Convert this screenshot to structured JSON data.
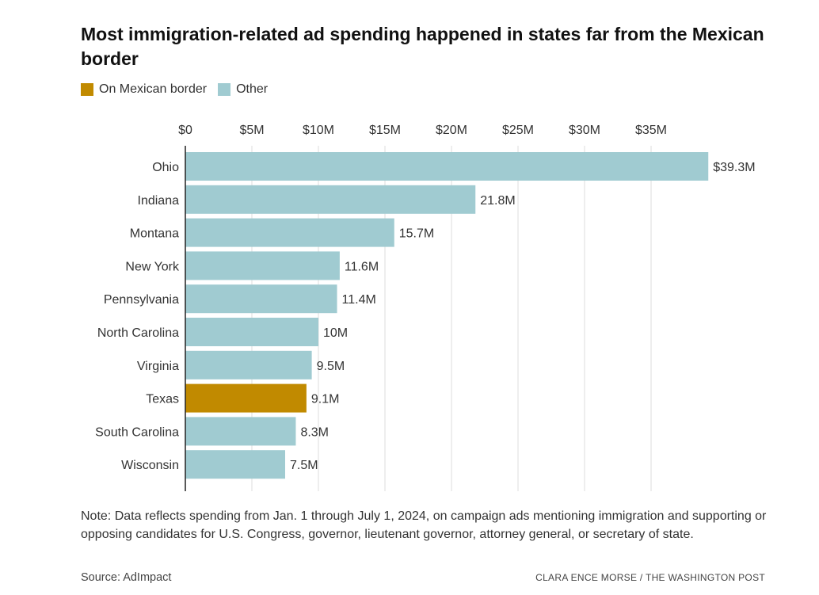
{
  "title": "Most immigration-related ad spending happened in states far from the Mexican border",
  "legend": [
    {
      "label": "On Mexican border",
      "color": "#c18a00"
    },
    {
      "label": "Other",
      "color": "#a0cbd1"
    }
  ],
  "chart_data": {
    "type": "bar",
    "orientation": "horizontal",
    "categories": [
      "Ohio",
      "Indiana",
      "Montana",
      "New York",
      "Pennsylvania",
      "North Carolina",
      "Virginia",
      "Texas",
      "South Carolina",
      "Wisconsin"
    ],
    "values": [
      39.3,
      21.8,
      15.7,
      11.6,
      11.4,
      10,
      9.5,
      9.1,
      8.3,
      7.5
    ],
    "value_labels": [
      "$39.3M",
      "21.8M",
      "15.7M",
      "11.6M",
      "11.4M",
      "10M",
      "9.5M",
      "9.1M",
      "8.3M",
      "7.5M"
    ],
    "groups": [
      "Other",
      "Other",
      "Other",
      "Other",
      "Other",
      "Other",
      "Other",
      "On Mexican border",
      "Other",
      "Other"
    ],
    "x_ticks": [
      0,
      5,
      10,
      15,
      20,
      25,
      30,
      35
    ],
    "x_tick_labels": [
      "$0",
      "$5M",
      "$10M",
      "$15M",
      "$20M",
      "$25M",
      "$30M",
      "$35M"
    ],
    "xlim": [
      0,
      39.3
    ],
    "axis_position": "top",
    "grid": true,
    "legend_position": "top-left",
    "xlabel": "",
    "ylabel": ""
  },
  "note": "Note: Data reflects spending from Jan. 1 through July 1, 2024, on campaign ads mentioning immigration and supporting or opposing candidates for U.S. Congress, governor, lieutenant governor, attorney general, or secretary of state.",
  "source": "Source: AdImpact",
  "credit": "CLARA ENCE MORSE / THE WASHINGTON POST"
}
